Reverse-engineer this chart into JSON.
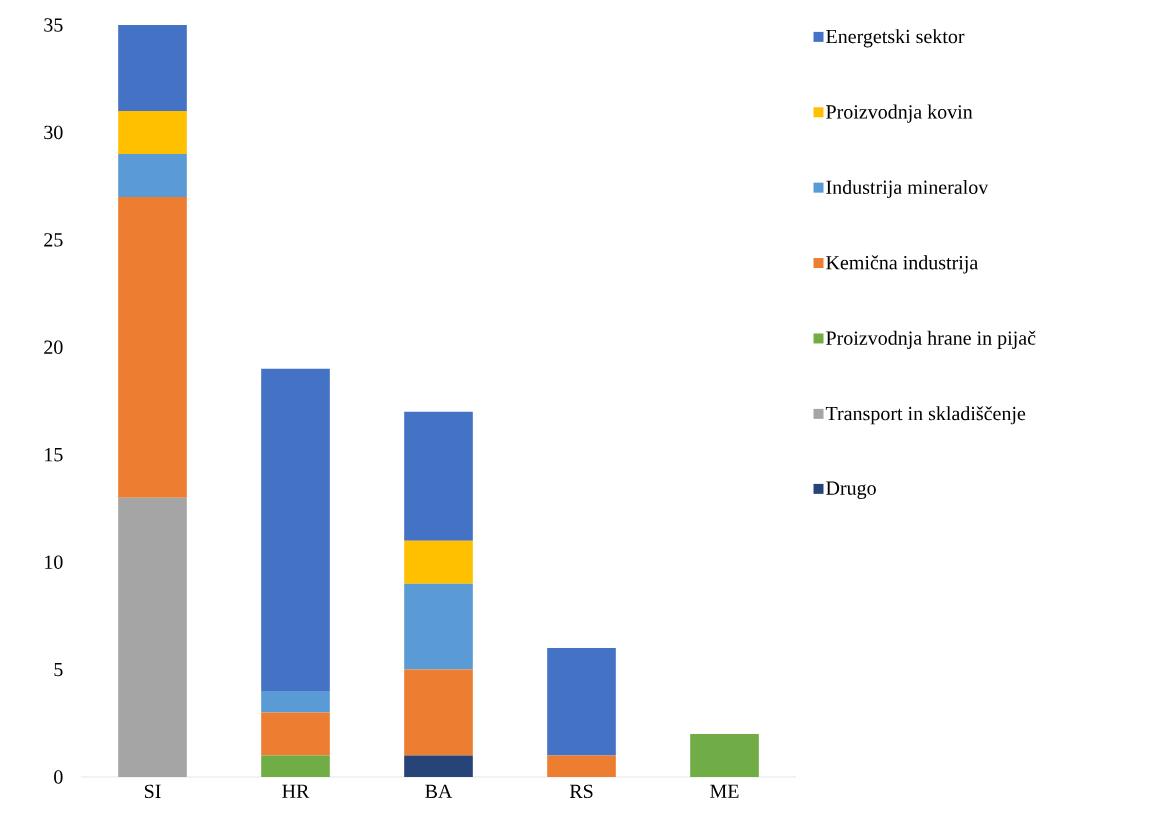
{
  "chart_data": {
    "type": "bar",
    "stacked": true,
    "categories": [
      "SI",
      "HR",
      "BA",
      "RS",
      "ME"
    ],
    "series": [
      {
        "name": "Drugo",
        "color": "#264478",
        "values": [
          null,
          null,
          1,
          null,
          null
        ]
      },
      {
        "name": "Transport in skladiščenje",
        "color": "#a5a5a5",
        "values": [
          13,
          null,
          null,
          null,
          null
        ]
      },
      {
        "name": "Proizvodnja hrane in pijač",
        "color": "#70ad47",
        "values": [
          null,
          1,
          null,
          null,
          2
        ]
      },
      {
        "name": "Kemična industrija",
        "color": "#ed7d31",
        "values": [
          14,
          2,
          4,
          1,
          null
        ]
      },
      {
        "name": "Industrija mineralov",
        "color": "#5b9bd5",
        "values": [
          2,
          1,
          4,
          null,
          null
        ]
      },
      {
        "name": "Proizvodnja kovin",
        "color": "#ffc000",
        "values": [
          2,
          null,
          2,
          null,
          null
        ]
      },
      {
        "name": "Energetski sektor",
        "color": "#4472c4",
        "values": [
          4,
          15,
          6,
          5,
          null
        ]
      }
    ],
    "ylim": [
      0,
      35
    ],
    "yticks": [
      0,
      5,
      10,
      15,
      20,
      25,
      30,
      35
    ],
    "grid": false,
    "legend": "right"
  }
}
